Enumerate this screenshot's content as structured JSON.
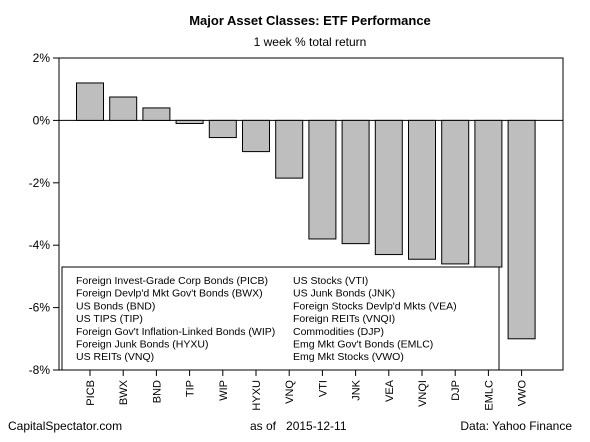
{
  "chart_data": {
    "type": "bar",
    "title": "Major Asset Classes: ETF Performance",
    "subtitle": "1 week % total return",
    "categories": [
      "PICB",
      "BWX",
      "BND",
      "TIP",
      "WIP",
      "HYXU",
      "VNQ",
      "VTI",
      "JNK",
      "VEA",
      "VNQI",
      "DJP",
      "EMLC",
      "VWO"
    ],
    "values": [
      1.2,
      0.75,
      0.4,
      -0.1,
      -0.55,
      -1.0,
      -1.85,
      -3.8,
      -3.95,
      -4.3,
      -4.45,
      -4.6,
      -4.7,
      -7.0
    ],
    "ylim": [
      -8,
      2
    ],
    "yticks": [
      2,
      0,
      -2,
      -4,
      -6,
      -8
    ],
    "ytick_labels": [
      "2%",
      "0%",
      "-2%",
      "-4%",
      "-6%",
      "-8%"
    ],
    "bar_color": "#bebebe",
    "grid": false,
    "zero_line": true,
    "legend": {
      "placement": "bottom-left",
      "col1": [
        "Foreign Invest-Grade Corp Bonds (PICB)",
        "Foreign Devlp'd Mkt Gov't Bonds (BWX)",
        "US Bonds (BND)",
        "US TIPS (TIP)",
        "Foreign Gov't Inflation-Linked Bonds (WIP)",
        "Foreign Junk Bonds (HYXU)",
        "US REITs (VNQ)"
      ],
      "col2": [
        "US Stocks (VTI)",
        "US Junk Bonds (JNK)",
        "Foreign Stocks Devlp'd Mkts (VEA)",
        "Foreign REITs (VNQI)",
        "Commodities (DJP)",
        "Emg Mkt Gov't Bonds (EMLC)",
        "Emg Mkt Stocks (VWO)"
      ]
    }
  },
  "footer": {
    "left": "CapitalSpectator.com",
    "middle": "as of   2015-12-11",
    "right": "Data: Yahoo Finance"
  }
}
